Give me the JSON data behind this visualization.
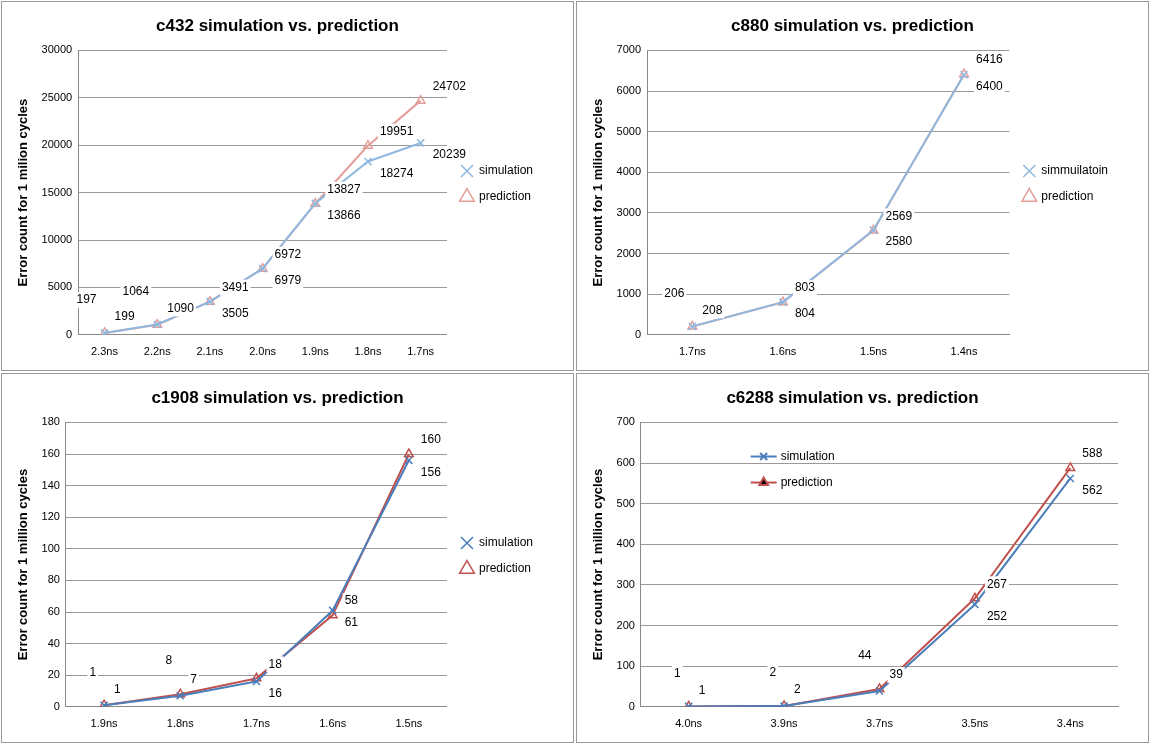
{
  "chart_data": [
    {
      "type": "line",
      "title": "c432 simulation vs. prediction",
      "ylabel": "Error count for 1 milion cycles",
      "categories": [
        "2.3ns",
        "2.2ns",
        "2.1ns",
        "2.0ns",
        "1.9ns",
        "1.8ns",
        "1.7ns"
      ],
      "ylim": [
        0,
        30000
      ],
      "yticks": [
        0,
        5000,
        10000,
        15000,
        20000,
        25000,
        30000
      ],
      "grid": "y",
      "legend": "right",
      "data_labels": true,
      "series": [
        {
          "name": "simulation",
          "color": "#8fb8e0",
          "marker": "cross",
          "values": [
            199,
            1090,
            3505,
            6979,
            13866,
            18274,
            20239
          ]
        },
        {
          "name": "prediction",
          "color": "#e39c98",
          "marker": "triangle",
          "values": [
            197,
            1064,
            3491,
            6972,
            13827,
            19951,
            24702
          ]
        }
      ]
    },
    {
      "type": "line",
      "title": "c880 simulation vs. prediction",
      "ylabel": "Error count for 1 milion cycles",
      "categories": [
        "1.7ns",
        "1.6ns",
        "1.5ns",
        "1.4ns"
      ],
      "ylim": [
        0,
        7000
      ],
      "yticks": [
        0,
        1000,
        2000,
        3000,
        4000,
        5000,
        6000,
        7000
      ],
      "grid": "y",
      "legend": "right",
      "data_labels": true,
      "series": [
        {
          "name": "simmuilatoin",
          "color": "#8fb8e0",
          "marker": "cross",
          "values": [
            208,
            804,
            2580,
            6400
          ]
        },
        {
          "name": "prediction",
          "color": "#e39c98",
          "marker": "triangle",
          "values": [
            206,
            803,
            2569,
            6416
          ]
        }
      ]
    },
    {
      "type": "line",
      "title": "c1908 simulation vs. prediction",
      "ylabel": "Error count for 1 million cycles",
      "categories": [
        "1.9ns",
        "1.8ns",
        "1.7ns",
        "1.6ns",
        "1.5ns"
      ],
      "ylim": [
        0,
        180
      ],
      "yticks": [
        0,
        20,
        40,
        60,
        80,
        100,
        120,
        140,
        160,
        180
      ],
      "grid": "y",
      "legend": "right",
      "data_labels": true,
      "series": [
        {
          "name": "simulation",
          "color": "#4a7ebb",
          "marker": "cross",
          "values": [
            1,
            7,
            16,
            61,
            156
          ]
        },
        {
          "name": "prediction",
          "color": "#c0504d",
          "marker": "triangle",
          "values": [
            1,
            8,
            18,
            58,
            160
          ]
        }
      ]
    },
    {
      "type": "line",
      "title": "c6288 simulation vs. prediction",
      "ylabel": "Error count for 1 million cycles",
      "categories": [
        "4.0ns",
        "3.9ns",
        "3.7ns",
        "3.5ns",
        "3.4ns"
      ],
      "ylim": [
        0,
        700
      ],
      "yticks": [
        0,
        100,
        200,
        300,
        400,
        500,
        600,
        700
      ],
      "grid": "y",
      "legend": "top left",
      "data_labels": true,
      "series": [
        {
          "name": "simulation",
          "color": "#4a7ebb",
          "marker": "cross",
          "values": [
            1,
            2,
            39,
            252,
            562
          ]
        },
        {
          "name": "prediction",
          "color": "#c0504d",
          "marker": "triangle",
          "values": [
            1,
            2,
            44,
            267,
            588
          ]
        }
      ]
    }
  ]
}
